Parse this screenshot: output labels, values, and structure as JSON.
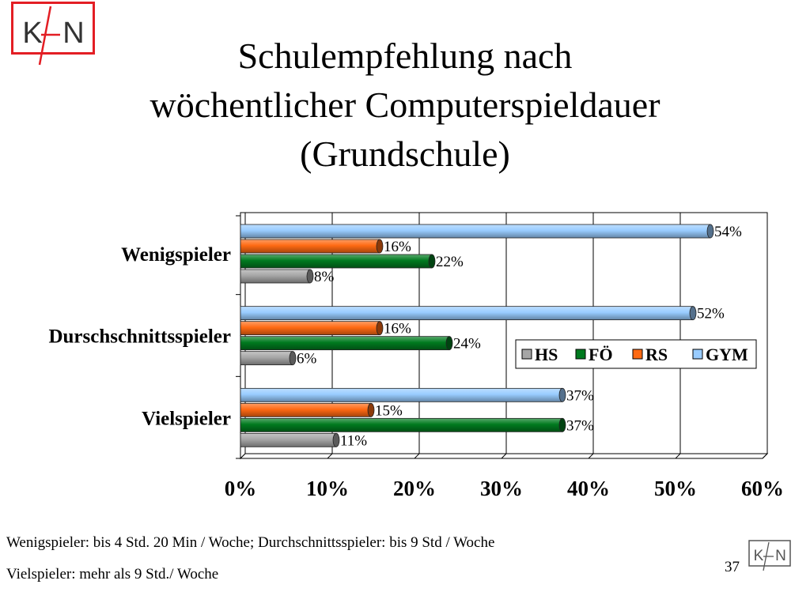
{
  "logo": {
    "text": "KfN",
    "color": "#e31e24"
  },
  "title": {
    "line1": "Schulempfehlung nach",
    "line2": "wöchentlicher Computerspieldauer",
    "line3": "(Grundschule)"
  },
  "chart_data": {
    "type": "bar",
    "orientation": "horizontal",
    "style": "3d-cylinder",
    "categories": [
      "Wenigspieler",
      "Durschschnittsspieler",
      "Vielspieler"
    ],
    "series": [
      {
        "name": "HS",
        "color": "#a6a6a6",
        "values": [
          8,
          6,
          11
        ],
        "labels": [
          "8%",
          "6%",
          "11%"
        ]
      },
      {
        "name": "FÖ",
        "color": "#007a1f",
        "values": [
          22,
          24,
          37
        ],
        "labels": [
          "22%",
          "24%",
          "37%"
        ]
      },
      {
        "name": "RS",
        "color": "#ff6a13",
        "values": [
          16,
          16,
          15
        ],
        "labels": [
          "16%",
          "16%",
          "15%"
        ]
      },
      {
        "name": "GYM",
        "color": "#99ccff",
        "values": [
          54,
          52,
          37
        ],
        "labels": [
          "54%",
          "52%",
          "37%"
        ]
      }
    ],
    "xlim": [
      0,
      60
    ],
    "x_ticks": [
      "0%",
      "10%",
      "20%",
      "30%",
      "40%",
      "50%",
      "60%"
    ],
    "grid": true,
    "legend": "inside-right",
    "title": "",
    "xlabel": "",
    "ylabel": ""
  },
  "footnotes": {
    "line1": "Wenigspieler: bis 4 Std. 20 Min / Woche; Durchschnittsspieler: bis 9 Std / Woche",
    "line2": "Vielspieler: mehr als 9 Std./ Woche"
  },
  "page_number": "37"
}
